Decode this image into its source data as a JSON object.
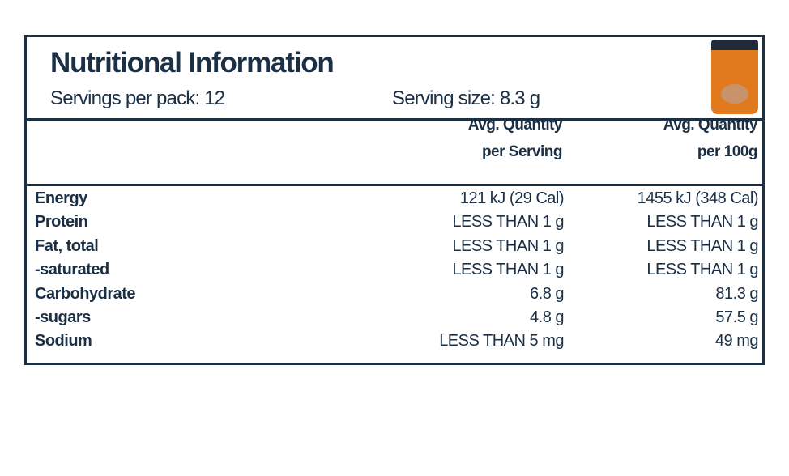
{
  "header": {
    "title": "Nutritional Information",
    "servings_per_pack": "Servings per pack: 12",
    "serving_size": "Serving size: 8.3 g"
  },
  "table": {
    "columns": [
      [
        "Avg. Quantity",
        "per Serving"
      ],
      [
        "Avg. Quantity",
        "per 100g"
      ]
    ],
    "rows": [
      [
        "Energy",
        "121 kJ (29 Cal)",
        "1455 kJ (348 Cal)"
      ],
      [
        "Protein",
        "LESS THAN 1 g",
        "LESS THAN 1 g"
      ],
      [
        "Fat, total",
        "LESS THAN 1 g",
        "LESS THAN 1 g"
      ],
      [
        "-saturated",
        "LESS THAN 1 g",
        "LESS THAN 1 g"
      ],
      [
        "Carbohydrate",
        "6.8 g",
        "81.3 g"
      ],
      [
        "-sugars",
        "4.8 g",
        "57.5 g"
      ],
      [
        "Sodium",
        "LESS THAN 5 mg",
        "49 mg"
      ]
    ]
  }
}
